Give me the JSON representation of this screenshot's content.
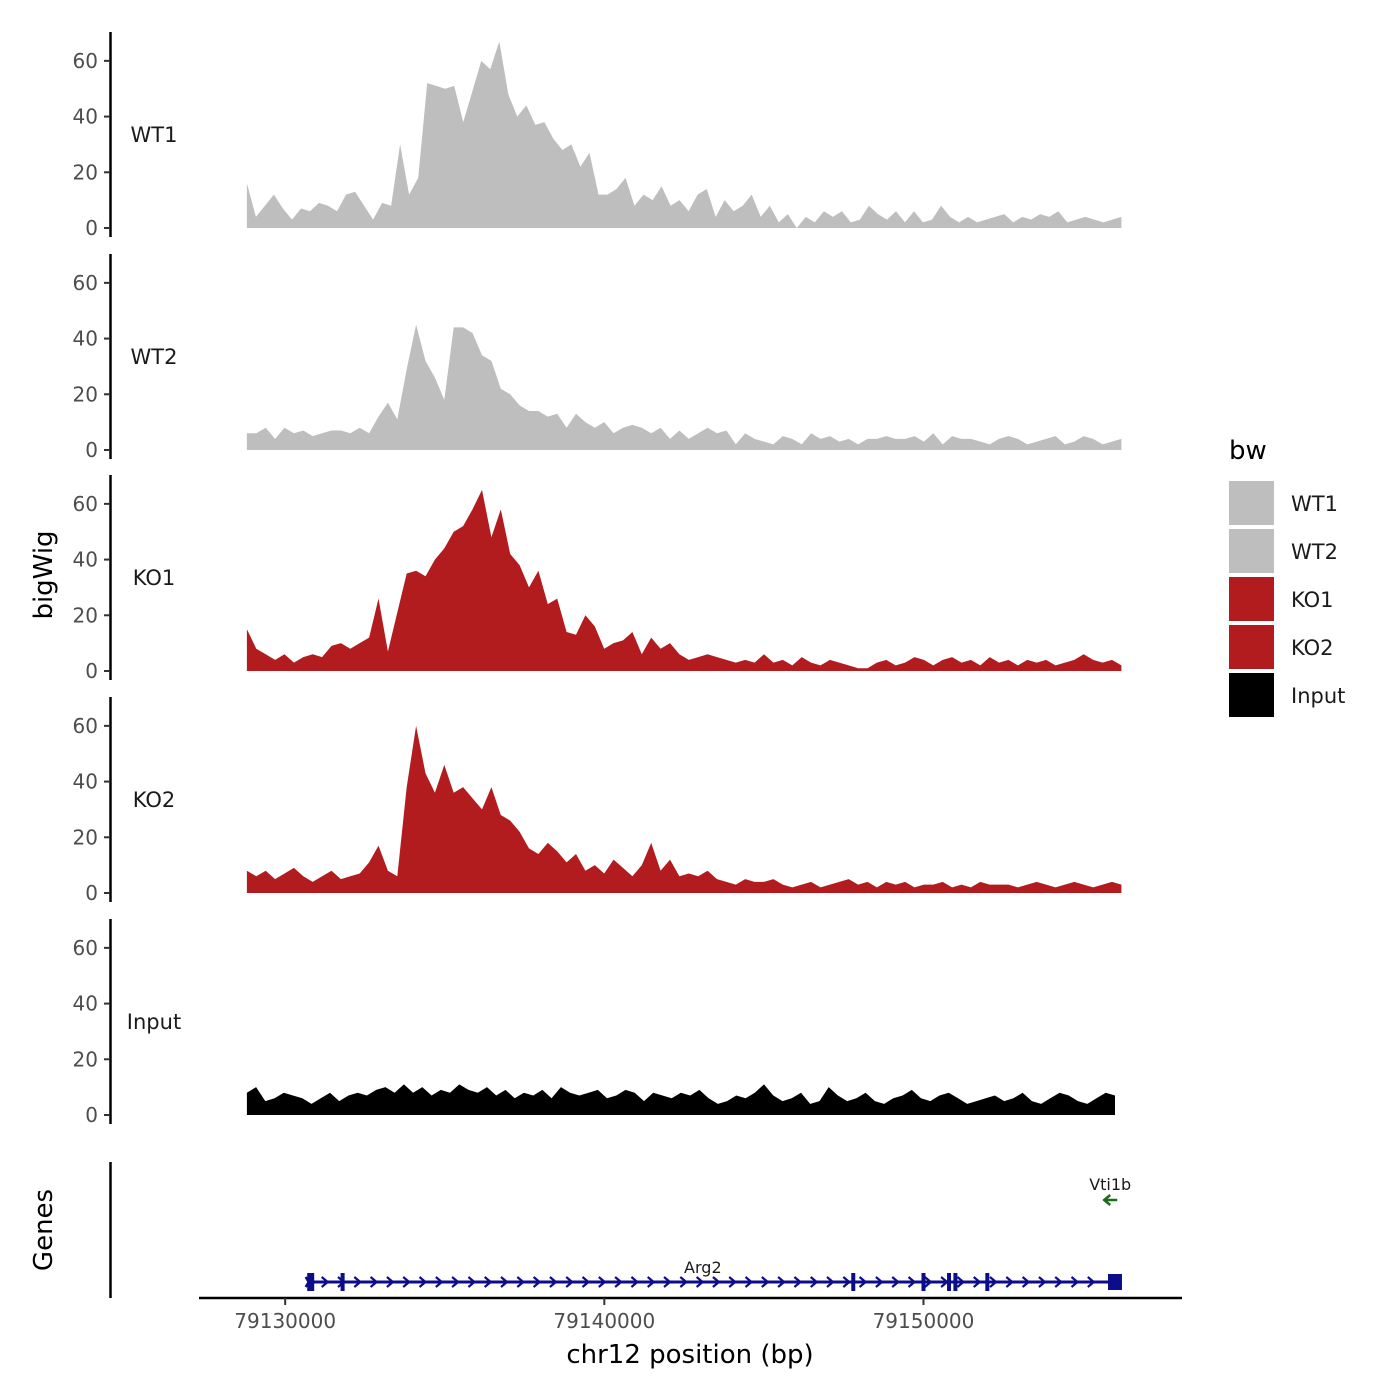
{
  "chart_data": {
    "type": "area",
    "chrom": "chr12",
    "xlabel": "chr12 position (bp)",
    "ylabel": "bigWig",
    "genes_label": "Genes",
    "xlim": [
      79127300,
      79158100
    ],
    "x_ticks": [
      79130000,
      79140000,
      79150000
    ],
    "x_tick_labels": [
      "79130000",
      "79140000",
      "79150000"
    ],
    "ylim": [
      0,
      70
    ],
    "y_ticks": [
      0,
      20,
      40,
      60
    ],
    "y_tick_labels": [
      "0",
      "20",
      "40",
      "60"
    ],
    "legend": {
      "title": "bw",
      "entries": [
        {
          "name": "WT1",
          "color": "#bebebe"
        },
        {
          "name": "WT2",
          "color": "#bebebe"
        },
        {
          "name": "KO1",
          "color": "#b21c1f"
        },
        {
          "name": "KO2",
          "color": "#b21c1f"
        },
        {
          "name": "Input",
          "color": "#000000"
        }
      ]
    },
    "tracks": [
      {
        "name": "WT1",
        "color": "#bebebe",
        "x_start": 79128800,
        "x_end": 79156200,
        "values": [
          16,
          4,
          8,
          12,
          7,
          3,
          7,
          6,
          9,
          8,
          6,
          12,
          13,
          8,
          3,
          9,
          8,
          30,
          12,
          18,
          52,
          51,
          50,
          51,
          38,
          49,
          60,
          57,
          67,
          48,
          40,
          44,
          37,
          38,
          32,
          28,
          30,
          22,
          27,
          12,
          12,
          14,
          18,
          8,
          12,
          10,
          15,
          8,
          10,
          6,
          12,
          14,
          4,
          10,
          6,
          8,
          12,
          4,
          8,
          2,
          5,
          0,
          4,
          2,
          6,
          4,
          6,
          2,
          3,
          8,
          5,
          3,
          6,
          2,
          6,
          2,
          3,
          8,
          4,
          2,
          4,
          2,
          3,
          4,
          5,
          2,
          4,
          3,
          5,
          4,
          6,
          2,
          3,
          4,
          3,
          2,
          3,
          4
        ]
      },
      {
        "name": "WT2",
        "color": "#bebebe",
        "x_start": 79128800,
        "x_end": 79156200,
        "values": [
          6,
          6,
          8,
          4,
          8,
          6,
          7,
          5,
          6,
          7,
          7,
          6,
          8,
          6,
          12,
          17,
          11,
          29,
          45,
          32,
          26,
          18,
          44,
          44,
          42,
          34,
          32,
          22,
          20,
          16,
          14,
          14,
          12,
          13,
          8,
          13,
          10,
          8,
          10,
          6,
          8,
          9,
          8,
          6,
          8,
          4,
          7,
          4,
          6,
          8,
          6,
          7,
          2,
          6,
          4,
          3,
          2,
          5,
          4,
          2,
          6,
          4,
          5,
          3,
          4,
          2,
          4,
          4,
          5,
          4,
          4,
          5,
          3,
          6,
          2,
          5,
          4,
          4,
          3,
          2,
          4,
          5,
          4,
          2,
          3,
          4,
          5,
          2,
          3,
          5,
          4,
          2,
          3,
          4
        ]
      },
      {
        "name": "KO1",
        "color": "#b21c1f",
        "x_start": 79128800,
        "x_end": 79156200,
        "values": [
          15,
          8,
          6,
          4,
          6,
          3,
          5,
          6,
          5,
          9,
          10,
          8,
          10,
          12,
          26,
          7,
          21,
          35,
          36,
          34,
          40,
          44,
          50,
          52,
          58,
          65,
          48,
          58,
          42,
          38,
          30,
          36,
          24,
          26,
          14,
          13,
          20,
          16,
          8,
          10,
          11,
          14,
          6,
          12,
          8,
          10,
          6,
          4,
          5,
          6,
          5,
          4,
          3,
          4,
          3,
          6,
          3,
          4,
          2,
          5,
          3,
          2,
          4,
          3,
          2,
          1,
          1,
          3,
          4,
          2,
          3,
          5,
          4,
          2,
          4,
          5,
          3,
          4,
          2,
          5,
          3,
          4,
          2,
          4,
          3,
          4,
          2,
          3,
          4,
          6,
          4,
          3,
          4,
          2
        ]
      },
      {
        "name": "KO2",
        "color": "#b21c1f",
        "x_start": 79128800,
        "x_end": 79156200,
        "values": [
          8,
          6,
          8,
          5,
          7,
          9,
          6,
          4,
          6,
          8,
          5,
          6,
          7,
          11,
          17,
          8,
          6,
          38,
          60,
          43,
          36,
          46,
          36,
          38,
          34,
          30,
          38,
          28,
          26,
          22,
          16,
          14,
          18,
          15,
          11,
          14,
          8,
          10,
          7,
          12,
          9,
          6,
          10,
          18,
          8,
          12,
          6,
          7,
          6,
          8,
          5,
          4,
          3,
          5,
          4,
          4,
          5,
          3,
          2,
          3,
          4,
          2,
          3,
          4,
          5,
          3,
          4,
          2,
          4,
          3,
          4,
          2,
          3,
          3,
          4,
          2,
          3,
          2,
          4,
          3,
          3,
          3,
          2,
          3,
          4,
          3,
          2,
          3,
          4,
          3,
          2,
          3,
          4,
          3
        ]
      },
      {
        "name": "Input",
        "color": "#000000",
        "x_start": 79128800,
        "x_end": 79156000,
        "values": [
          8,
          10,
          5,
          6,
          8,
          7,
          6,
          4,
          6,
          8,
          5,
          7,
          8,
          7,
          9,
          10,
          8,
          11,
          8,
          10,
          7,
          9,
          8,
          11,
          9,
          8,
          10,
          7,
          9,
          6,
          8,
          7,
          9,
          6,
          10,
          8,
          7,
          8,
          9,
          6,
          7,
          9,
          8,
          5,
          8,
          7,
          6,
          8,
          7,
          9,
          6,
          4,
          5,
          7,
          6,
          8,
          11,
          7,
          5,
          6,
          8,
          4,
          5,
          10,
          7,
          5,
          6,
          8,
          5,
          4,
          6,
          7,
          9,
          6,
          5,
          7,
          8,
          6,
          4,
          5,
          6,
          7,
          5,
          6,
          8,
          5,
          4,
          6,
          8,
          7,
          5,
          4,
          6,
          8,
          7
        ]
      }
    ],
    "genes": [
      {
        "name": "Arg2",
        "strand": "+",
        "start": 79130800,
        "end": 79156000,
        "color": "#0c0d8a",
        "exon_positions": [
          79130800,
          79131800,
          79147800,
          79150000,
          79150800,
          79151000,
          79152000,
          79156000
        ]
      },
      {
        "name": "Vti1b",
        "strand": "-",
        "start": 79155700,
        "end": 79156000,
        "color": "#1a6b1a"
      }
    ]
  }
}
